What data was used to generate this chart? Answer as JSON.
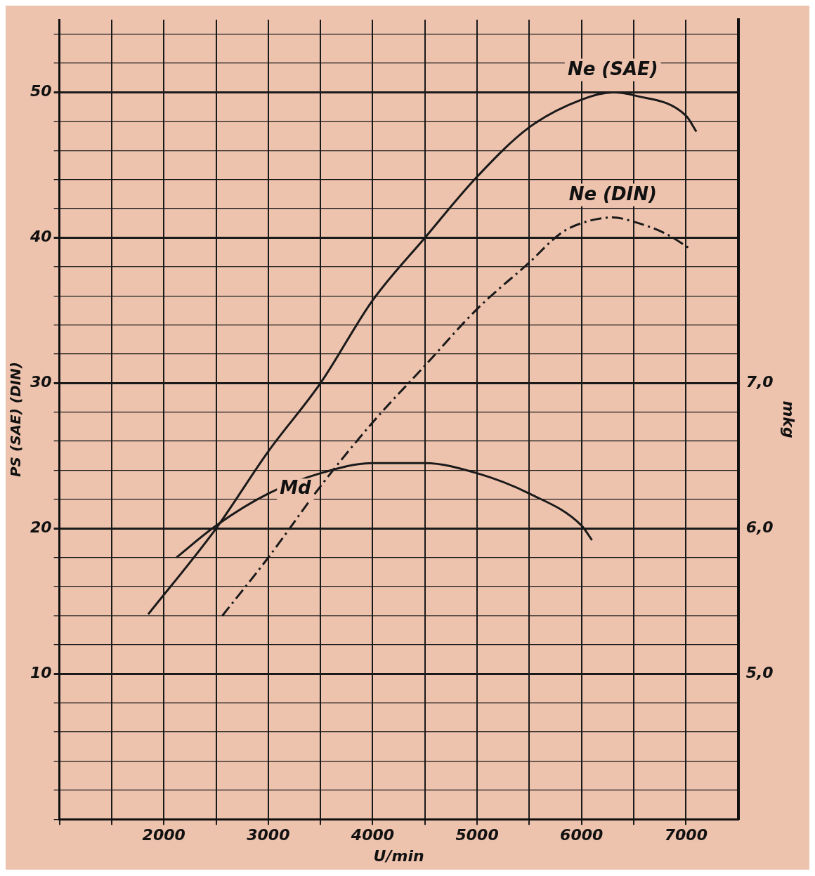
{
  "chart_data": {
    "type": "line",
    "xlabel": "U/min",
    "ylabel": "PS (SAE) (DIN)",
    "y2label": "mkg",
    "xlim": [
      1000,
      7500
    ],
    "xticks": [
      {
        "value": 1000,
        "label": null
      },
      {
        "value": 1500,
        "label": null
      },
      2000,
      {
        "value": 2500,
        "label": null
      },
      3000,
      {
        "value": 3500,
        "label": null
      },
      4000,
      {
        "value": 4500,
        "label": null
      },
      5000,
      {
        "value": 5500,
        "label": null
      },
      6000,
      {
        "value": 6500,
        "label": null
      },
      7000
    ],
    "ylim": [
      0,
      55
    ],
    "yticks": [
      {
        "value": 0,
        "label": null
      },
      {
        "value": 2,
        "label": null
      },
      {
        "value": 4,
        "label": null
      },
      {
        "value": 6,
        "label": null
      },
      {
        "value": 8,
        "label": null
      },
      10,
      {
        "value": 12,
        "label": null
      },
      {
        "value": 14,
        "label": null
      },
      {
        "value": 16,
        "label": null
      },
      {
        "value": 18,
        "label": null
      },
      20,
      {
        "value": 22,
        "label": null
      },
      {
        "value": 24,
        "label": null
      },
      {
        "value": 26,
        "label": null
      },
      {
        "value": 28,
        "label": null
      },
      30,
      {
        "value": 32,
        "label": null
      },
      {
        "value": 34,
        "label": null
      },
      {
        "value": 36,
        "label": null
      },
      {
        "value": 38,
        "label": null
      },
      40,
      {
        "value": 42,
        "label": null
      },
      {
        "value": 44,
        "label": null
      },
      {
        "value": 46,
        "label": null
      },
      {
        "value": 48,
        "label": null
      },
      50,
      {
        "value": 52,
        "label": null
      },
      {
        "value": 54,
        "label": null
      }
    ],
    "y2lim": [
      4.0,
      9.5
    ],
    "y2ticks": [
      {
        "value": 5,
        "label": "5,0"
      },
      {
        "value": 6,
        "label": "6,0"
      },
      {
        "value": 7,
        "label": "7,0"
      }
    ],
    "grid": true,
    "legend": false,
    "marker": "none",
    "series": [
      {
        "name": "Ne (SAE)",
        "color": "#1a1a1a",
        "line_style": "solid",
        "x": [
          1850,
          2500,
          3000,
          3500,
          4000,
          4500,
          5000,
          5500,
          6000,
          6300,
          6500,
          7000,
          7100
        ],
        "values": [
          14.1,
          20,
          25.3,
          30,
          35.7,
          40,
          44.2,
          47.6,
          49.5,
          50,
          49.8,
          48.4,
          47.3
        ]
      },
      {
        "name": "Ne (DIN)",
        "color": "#1a1a1a",
        "line_style": "dashed",
        "x": [
          2560,
          3000,
          3500,
          4000,
          4500,
          5000,
          5500,
          5800,
          6000,
          6300,
          6500,
          6800,
          7050
        ],
        "values": [
          14,
          18,
          22.9,
          27.3,
          31.2,
          35.1,
          38.3,
          40.3,
          41,
          41.4,
          41.1,
          40.3,
          39.2
        ]
      },
      {
        "name": "Md",
        "color": "#1a1a1a",
        "line_style": "solid",
        "axis": "y2",
        "x": [
          2120,
          2500,
          3000,
          3500,
          4000,
          4500,
          5000,
          5500,
          6000,
          6100
        ],
        "values": [
          5.8,
          6.02,
          6.24,
          6.38,
          6.45,
          6.45,
          6.38,
          6.24,
          6.02,
          5.92
        ]
      }
    ]
  }
}
